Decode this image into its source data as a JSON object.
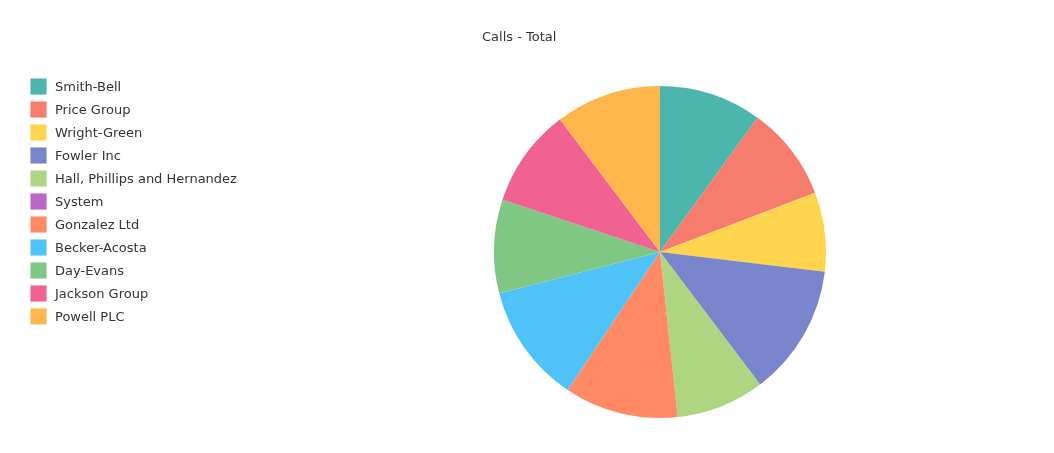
{
  "chart_data": {
    "type": "pie",
    "title": "Calls - Total",
    "categories": [
      "Smith-Bell",
      "Price Group",
      "Wright-Green",
      "Fowler Inc",
      "Hall, Phillips and Hernandez",
      "System",
      "Gonzalez Ltd",
      "Becker-Acosta",
      "Day-Evans",
      "Jackson Group",
      "Powell PLC"
    ],
    "values": [
      10.0,
      9.2,
      7.7,
      12.8,
      8.6,
      0,
      11.1,
      11.6,
      9.1,
      9.6,
      10.3
    ],
    "colors": [
      "#4db6ac",
      "#f67c6e",
      "#ffd54f",
      "#7986cb",
      "#aed581",
      "#ba68c8",
      "#ff8a65",
      "#4fc3f7",
      "#81c784",
      "#f06292",
      "#ffb74d"
    ],
    "legend": "top left"
  }
}
